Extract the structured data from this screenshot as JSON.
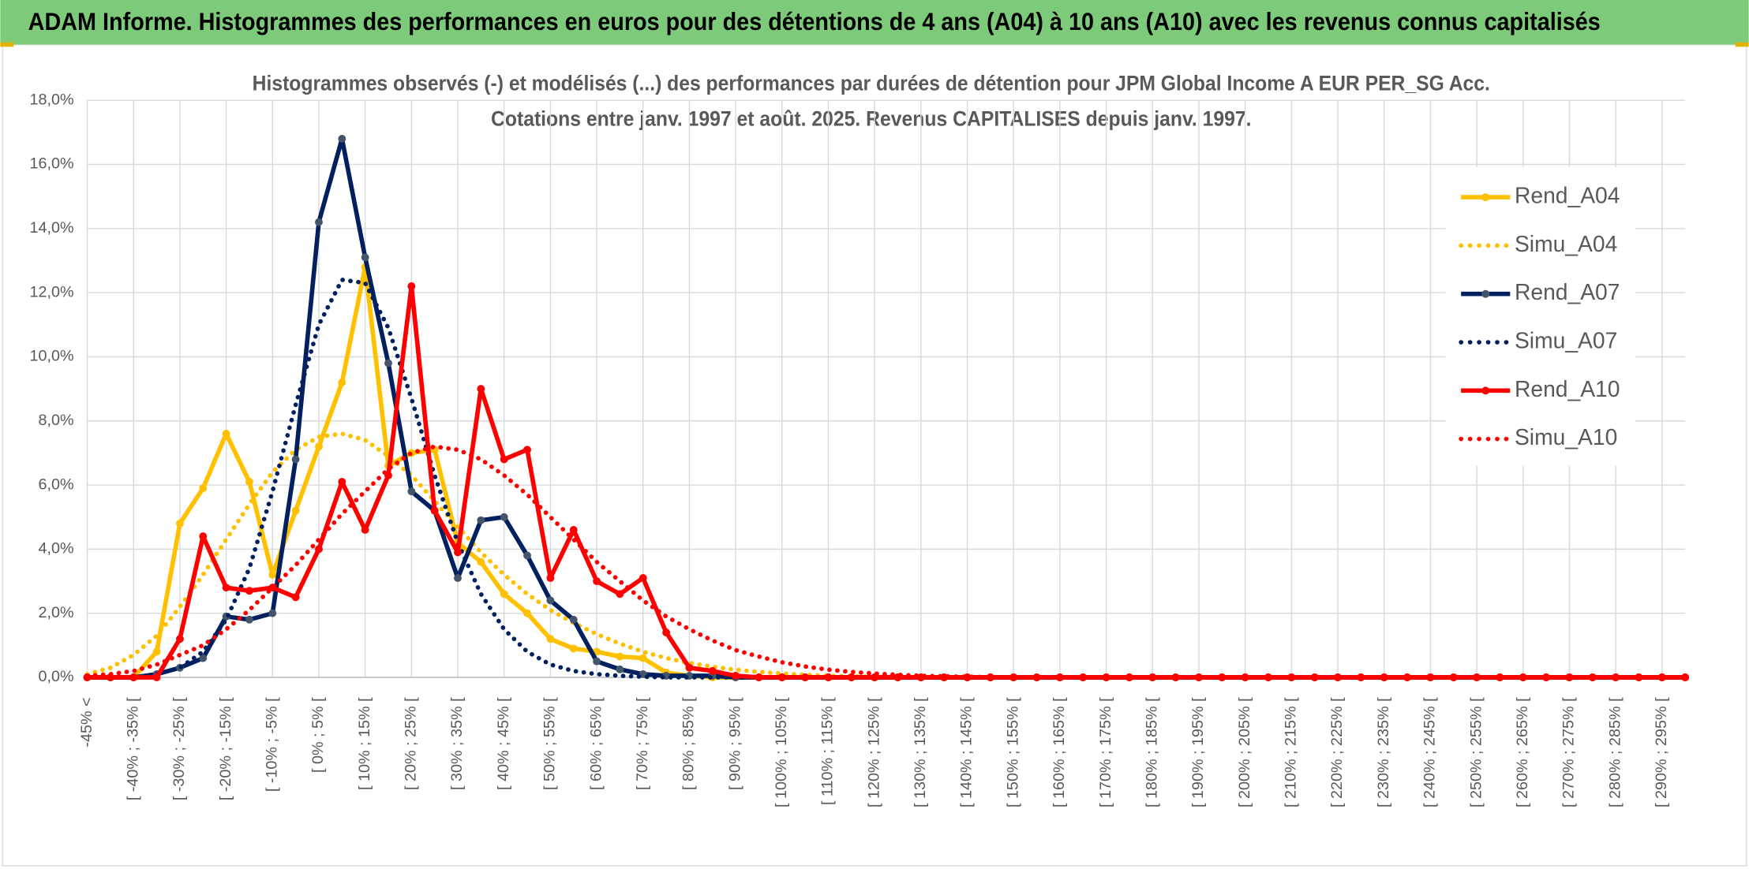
{
  "chart_data": {
    "type": "line",
    "title": "ADAM Informe. Histogrammes des performances en euros pour des détentions de 4 ans (A04) à 10 ans (A10) avec les revenus connus capitalisés",
    "subtitle": [
      "Histogrammes observés (-) et modélisés (...) des performances par durées de détention pour JPM Global Income A EUR PER_SG Acc.",
      "Cotations entre janv. 1997 et août. 2025. Revenus CAPITALISES depuis janv. 1997."
    ],
    "categories": [
      "-45% <",
      null,
      "[ -40% ; -35% [",
      null,
      "[ -30% ; -25% [",
      null,
      "[ -20% ; -15% [",
      null,
      "[ -10% ; -5% [",
      null,
      "[ 0% ; 5% [",
      null,
      "[ 10% ; 15% [",
      null,
      "[ 20% ; 25% [",
      null,
      "[ 30% ; 35% [",
      null,
      "[ 40% ; 45% [",
      null,
      "[ 50% ; 55% [",
      null,
      "[ 60% ; 65% [",
      null,
      "[ 70% ; 75% [",
      null,
      "[ 80% ; 85% [",
      null,
      "[ 90% ; 95% [",
      null,
      "[ 100% ; 105% [",
      null,
      "[ 110% ; 115% [",
      null,
      "[ 120% ; 125% [",
      null,
      "[ 130% ; 135% [",
      null,
      "[ 140% ; 145% [",
      null,
      "[ 150% ; 155% [",
      null,
      "[ 160% ; 165% [",
      null,
      "[ 170% ; 175% [",
      null,
      "[ 180% ; 185% [",
      null,
      "[ 190% ; 195% [",
      null,
      "[ 200% ; 205% [",
      null,
      "[ 210% ; 215% [",
      null,
      "[ 220% ; 225% [",
      null,
      "[ 230% ; 235% [",
      null,
      "[ 240% ; 245% [",
      null,
      "[ 250% ; 255% [",
      null,
      "[ 260% ; 265% [",
      null,
      "[ 270% ; 275% [",
      null,
      "[ 280% ; 285% [",
      null,
      "[ 290% ; 295% [",
      null
    ],
    "series": [
      {
        "name": "Rend_A04",
        "color": "#ffc000",
        "style": "solid",
        "markers": true,
        "values": [
          0,
          0,
          0,
          0.8,
          4.8,
          5.9,
          7.6,
          6.1,
          3.2,
          5.2,
          7.2,
          9.2,
          12.8,
          6.6,
          7.0,
          7.1,
          4.2,
          3.6,
          2.6,
          2.0,
          1.2,
          0.9,
          0.8,
          0.65,
          0.6,
          0.15,
          0.05,
          0,
          0,
          0,
          0,
          0,
          0,
          0,
          0,
          0,
          0,
          0,
          0,
          0,
          0,
          0,
          0,
          0,
          0,
          0,
          0,
          0,
          0,
          0,
          0,
          0,
          0,
          0,
          0,
          0,
          0,
          0,
          0,
          0,
          0,
          0,
          0,
          0,
          0,
          0,
          0,
          0,
          0,
          0
        ]
      },
      {
        "name": "Simu_A04",
        "color": "#ffc000",
        "style": "dotted",
        "markers": false,
        "values": [
          0.1,
          0.3,
          0.7,
          1.3,
          2.2,
          3.2,
          4.3,
          5.4,
          6.4,
          7.1,
          7.5,
          7.6,
          7.4,
          6.9,
          6.3,
          5.5,
          4.7,
          3.9,
          3.2,
          2.6,
          2.1,
          1.7,
          1.35,
          1.05,
          0.8,
          0.6,
          0.45,
          0.33,
          0.24,
          0.17,
          0.12,
          0.08,
          0.05,
          0.03,
          0.02,
          0.01,
          0,
          0,
          0,
          0,
          0,
          0,
          0,
          0,
          0,
          0,
          0,
          0,
          0,
          0,
          0,
          0,
          0,
          0,
          0,
          0,
          0,
          0,
          0,
          0,
          0,
          0,
          0,
          0,
          0,
          0,
          0,
          0,
          0,
          0
        ]
      },
      {
        "name": "Rend_A07",
        "color": "#002060",
        "style": "solid",
        "markers": true,
        "values": [
          0,
          0,
          0,
          0.1,
          0.3,
          0.6,
          1.9,
          1.8,
          2.0,
          6.8,
          14.2,
          16.8,
          13.1,
          9.8,
          5.8,
          5.2,
          3.1,
          4.9,
          5.0,
          3.8,
          2.4,
          1.8,
          0.5,
          0.25,
          0.1,
          0.05,
          0.05,
          0.05,
          0,
          0,
          0,
          0,
          0,
          0,
          0,
          0,
          0,
          0,
          0,
          0,
          0,
          0,
          0,
          0,
          0,
          0,
          0,
          0,
          0,
          0,
          0,
          0,
          0,
          0,
          0,
          0,
          0,
          0,
          0,
          0,
          0,
          0,
          0,
          0,
          0,
          0,
          0,
          0,
          0,
          0
        ]
      },
      {
        "name": "Simu_A07",
        "color": "#002060",
        "style": "dotted",
        "markers": false,
        "values": [
          0,
          0,
          0,
          0.1,
          0.3,
          0.8,
          1.8,
          3.4,
          5.8,
          8.5,
          11.0,
          12.4,
          12.3,
          10.9,
          8.7,
          6.3,
          4.2,
          2.6,
          1.5,
          0.8,
          0.4,
          0.2,
          0.1,
          0.05,
          0.02,
          0,
          0,
          0,
          0,
          0,
          0,
          0,
          0,
          0,
          0,
          0,
          0,
          0,
          0,
          0,
          0,
          0,
          0,
          0,
          0,
          0,
          0,
          0,
          0,
          0,
          0,
          0,
          0,
          0,
          0,
          0,
          0,
          0,
          0,
          0,
          0,
          0,
          0,
          0,
          0,
          0,
          0,
          0,
          0,
          0
        ]
      },
      {
        "name": "Rend_A10",
        "color": "#ff0000",
        "style": "solid",
        "markers": true,
        "values": [
          0,
          0,
          0,
          0,
          1.2,
          4.4,
          2.8,
          2.7,
          2.8,
          2.5,
          4.0,
          6.1,
          4.6,
          6.3,
          12.2,
          5.2,
          3.9,
          9.0,
          6.8,
          7.1,
          3.1,
          4.6,
          3.0,
          2.6,
          3.1,
          1.4,
          0.3,
          0.2,
          0.05,
          0,
          0,
          0,
          0,
          0,
          0,
          0,
          0,
          0,
          0,
          0,
          0,
          0,
          0,
          0,
          0,
          0,
          0,
          0,
          0,
          0,
          0,
          0,
          0,
          0,
          0,
          0,
          0,
          0,
          0,
          0,
          0,
          0,
          0,
          0,
          0,
          0,
          0,
          0,
          0,
          0
        ]
      },
      {
        "name": "Simu_A10",
        "color": "#ff0000",
        "style": "dotted",
        "markers": false,
        "values": [
          0.05,
          0.1,
          0.2,
          0.4,
          0.7,
          1.0,
          1.5,
          2.1,
          2.8,
          3.5,
          4.3,
          5.1,
          5.8,
          6.5,
          7.0,
          7.2,
          7.1,
          6.8,
          6.3,
          5.7,
          5.0,
          4.3,
          3.6,
          3.0,
          2.4,
          1.9,
          1.5,
          1.15,
          0.85,
          0.65,
          0.47,
          0.34,
          0.24,
          0.17,
          0.12,
          0.08,
          0.05,
          0.03,
          0.02,
          0.01,
          0,
          0,
          0,
          0,
          0,
          0,
          0,
          0,
          0,
          0,
          0,
          0,
          0,
          0,
          0,
          0,
          0,
          0,
          0,
          0,
          0,
          0,
          0,
          0,
          0,
          0,
          0,
          0,
          0,
          0
        ]
      }
    ],
    "ylim": [
      0,
      18
    ],
    "yticks": [
      {
        "value": 0,
        "label": "0,0%"
      },
      {
        "value": 2,
        "label": "2,0%"
      },
      {
        "value": 4,
        "label": "4,0%"
      },
      {
        "value": 6,
        "label": "6,0%"
      },
      {
        "value": 8,
        "label": "8,0%"
      },
      {
        "value": 10,
        "label": "10,0%"
      },
      {
        "value": 12,
        "label": "12,0%"
      },
      {
        "value": 14,
        "label": "14,0%"
      },
      {
        "value": 16,
        "label": "16,0%"
      },
      {
        "value": 18,
        "label": "18,0%"
      }
    ],
    "grid": true,
    "legend": "right"
  }
}
